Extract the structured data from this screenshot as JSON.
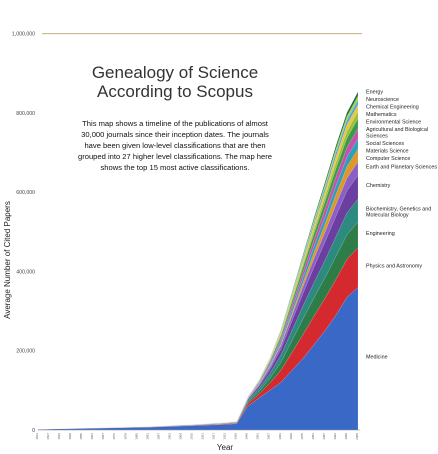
{
  "chart_data": {
    "type": "area",
    "title_lines": [
      "Genealogy of Science",
      "According to Scopus"
    ],
    "description_lines": [
      "This map shows a timeline of the publications of almost",
      "30,000 journals since their inception dates. The journals",
      "have been given low-level classifications that are then",
      "grouped into 27 higher level classifications. The map here",
      "shows the top 15 most active classifications."
    ],
    "xlabel": "Year",
    "ylabel": "Average Number of Cited Papers",
    "ylim": [
      0,
      1080000
    ],
    "y_ticks": [
      {
        "value": 0,
        "label": "0"
      },
      {
        "value": 200000,
        "label": "200,000"
      },
      {
        "value": 400000,
        "label": "400,000"
      },
      {
        "value": 600000,
        "label": "600,000"
      },
      {
        "value": 800000,
        "label": "800,000"
      },
      {
        "value": 1000000,
        "label": "1,000,000"
      }
    ],
    "reference_line": 1000000,
    "x": [
      "1831",
      "1837",
      "1843",
      "1849",
      "1855",
      "1861",
      "1867",
      "1873",
      "1879",
      "1885",
      "1891",
      "1897",
      "1903",
      "1909",
      "1915",
      "1921",
      "1927",
      "1933",
      "1939",
      "1945",
      "1951",
      "1957",
      "1963",
      "1969",
      "1975",
      "1981",
      "1987",
      "1993",
      "1999",
      "2005"
    ],
    "series": [
      {
        "name": "Medicine",
        "color": "#3a68c6",
        "values": [
          2000,
          2500,
          3000,
          3500,
          4000,
          4500,
          5000,
          5500,
          6000,
          6500,
          7000,
          8000,
          9000,
          10000,
          11000,
          12000,
          13000,
          14000,
          16000,
          60000,
          80000,
          100000,
          120000,
          150000,
          180000,
          215000,
          250000,
          290000,
          335000,
          360000
        ]
      },
      {
        "name": "Physics and Astronomy",
        "color": "#d42a2f",
        "values": [
          200,
          200,
          300,
          300,
          300,
          400,
          400,
          500,
          500,
          600,
          600,
          700,
          800,
          900,
          1000,
          1100,
          1300,
          1500,
          1700,
          6000,
          10000,
          18000,
          30000,
          45000,
          60000,
          72000,
          82000,
          90000,
          96000,
          100000
        ]
      },
      {
        "name": "Engineering",
        "color": "#2e7d48",
        "values": [
          100,
          100,
          200,
          200,
          200,
          300,
          300,
          300,
          400,
          400,
          400,
          500,
          500,
          600,
          600,
          700,
          800,
          900,
          1000,
          4000,
          7000,
          12000,
          20000,
          30000,
          40000,
          46000,
          52000,
          58000,
          62000,
          65000
        ]
      },
      {
        "name": "Biochemistry, Genetics and Molecular Biology",
        "color": "#2c8a7e",
        "values": [
          100,
          100,
          200,
          200,
          200,
          300,
          300,
          300,
          400,
          400,
          400,
          500,
          500,
          600,
          600,
          700,
          800,
          900,
          1000,
          4000,
          7000,
          12000,
          18000,
          25000,
          32000,
          38000,
          44000,
          50000,
          55000,
          58000
        ]
      },
      {
        "name": "Chemistry",
        "color": "#6b3fa0",
        "values": [
          100,
          100,
          150,
          150,
          200,
          200,
          250,
          250,
          300,
          300,
          300,
          400,
          400,
          500,
          500,
          600,
          700,
          800,
          900,
          3000,
          6000,
          10000,
          16000,
          24000,
          32000,
          40000,
          46000,
          52000,
          56000,
          60000
        ]
      },
      {
        "name": "Earth and Planetary Sciences",
        "color": "#8a5fc7",
        "values": [
          50,
          50,
          80,
          80,
          100,
          100,
          120,
          120,
          150,
          150,
          150,
          200,
          200,
          250,
          250,
          300,
          350,
          400,
          450,
          1500,
          3000,
          6000,
          9000,
          13000,
          17000,
          21000,
          25000,
          29000,
          32000,
          34000
        ]
      },
      {
        "name": "Computer Science",
        "color": "#e0972a",
        "values": [
          0,
          0,
          0,
          0,
          0,
          0,
          0,
          0,
          0,
          0,
          0,
          0,
          0,
          0,
          0,
          0,
          0,
          0,
          0,
          200,
          500,
          1500,
          3000,
          6000,
          10000,
          15000,
          20000,
          25000,
          29000,
          32000
        ]
      },
      {
        "name": "Materials Science",
        "color": "#2f9fb8",
        "values": [
          10,
          10,
          20,
          20,
          30,
          30,
          40,
          40,
          50,
          50,
          60,
          70,
          80,
          90,
          100,
          120,
          140,
          160,
          180,
          800,
          2000,
          4000,
          7000,
          10000,
          13000,
          16000,
          19000,
          22000,
          24000,
          26000
        ]
      },
      {
        "name": "Social Sciences",
        "color": "#c84fae",
        "values": [
          30,
          30,
          50,
          50,
          60,
          60,
          80,
          80,
          100,
          100,
          100,
          130,
          130,
          160,
          160,
          200,
          230,
          260,
          300,
          1200,
          2500,
          4500,
          7000,
          10000,
          13000,
          16000,
          19000,
          22000,
          24000,
          25000
        ]
      },
      {
        "name": "Agricultural and Biological Sciences",
        "color": "#3e9a4a",
        "values": [
          30,
          30,
          50,
          50,
          60,
          60,
          80,
          80,
          100,
          100,
          100,
          130,
          130,
          160,
          160,
          200,
          230,
          260,
          300,
          1200,
          2500,
          4500,
          7000,
          10000,
          13000,
          16000,
          19000,
          22000,
          24000,
          26000
        ]
      },
      {
        "name": "Environmental Science",
        "color": "#97c23d",
        "values": [
          0,
          0,
          0,
          0,
          0,
          0,
          0,
          0,
          0,
          10,
          10,
          20,
          20,
          30,
          30,
          40,
          50,
          60,
          80,
          300,
          800,
          1800,
          3500,
          5500,
          7500,
          10000,
          12500,
          15000,
          17000,
          18000
        ]
      },
      {
        "name": "Mathematics",
        "color": "#f1c43c",
        "values": [
          20,
          20,
          30,
          30,
          40,
          40,
          50,
          50,
          60,
          60,
          70,
          80,
          90,
          100,
          110,
          130,
          150,
          170,
          200,
          700,
          1500,
          3000,
          5000,
          7000,
          9000,
          11000,
          13000,
          15000,
          16500,
          17000
        ]
      },
      {
        "name": "Chemical Engineering",
        "color": "#4aa8dc",
        "values": [
          10,
          10,
          10,
          10,
          20,
          20,
          20,
          20,
          30,
          30,
          30,
          40,
          40,
          50,
          50,
          60,
          70,
          80,
          100,
          400,
          900,
          1800,
          3000,
          4500,
          6000,
          7500,
          9000,
          10500,
          11500,
          12000
        ]
      },
      {
        "name": "Neuroscience",
        "color": "#a2d24e",
        "values": [
          0,
          0,
          0,
          0,
          0,
          0,
          0,
          0,
          0,
          0,
          0,
          0,
          0,
          0,
          0,
          10,
          20,
          30,
          40,
          200,
          500,
          1000,
          2000,
          3200,
          4500,
          6000,
          7500,
          9000,
          10000,
          10500
        ]
      },
      {
        "name": "Energy",
        "color": "#1f6b3a",
        "values": [
          0,
          0,
          0,
          0,
          0,
          0,
          0,
          0,
          0,
          0,
          0,
          0,
          0,
          0,
          0,
          0,
          0,
          0,
          10,
          100,
          300,
          700,
          1400,
          2500,
          3800,
          5200,
          6600,
          8000,
          9200,
          10000
        ]
      }
    ],
    "legend_placement": "right"
  }
}
